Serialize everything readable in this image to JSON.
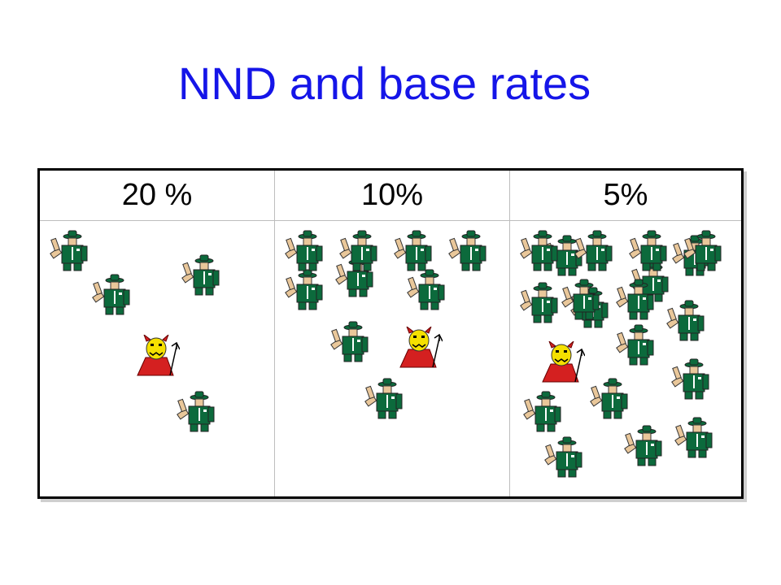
{
  "slide": {
    "title": "NND and base rates"
  },
  "table": {
    "headers": [
      "20 %",
      "10%",
      "5%"
    ],
    "columns": [
      {
        "rangers": 4,
        "devils": 1
      },
      {
        "rangers": 9,
        "devils": 1
      },
      {
        "rangers": 19,
        "devils": 1
      }
    ]
  },
  "icons": {
    "ranger": "ranger-icon",
    "devil": "devil-icon"
  },
  "colors": {
    "title": "#1515e8",
    "ranger_uniform": "#0c6a3c",
    "devil_face": "#f5e000",
    "devil_cape": "#d42020"
  }
}
